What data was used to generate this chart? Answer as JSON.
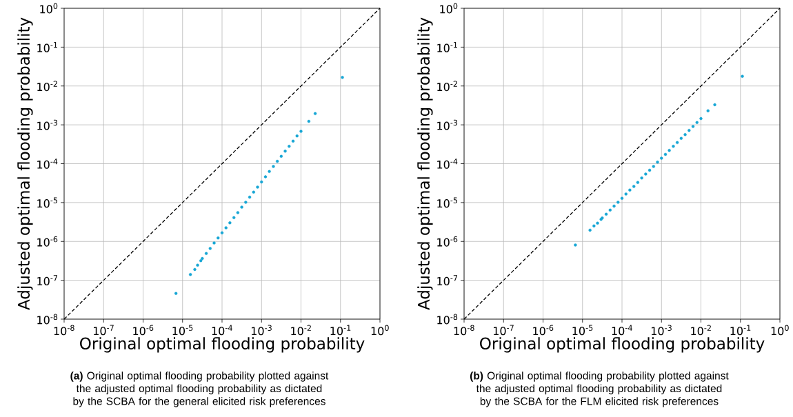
{
  "chart_data": [
    {
      "type": "scatter",
      "xlabel": "Original optimal flooding probability",
      "ylabel": "Adjusted optimal flooding probability",
      "log": "xy",
      "grid": true,
      "marker": "circle",
      "xlim": [
        1e-08,
        1
      ],
      "ylim": [
        1e-08,
        1
      ],
      "xticks": [
        {
          "value": 1e-08,
          "label": "10$^{-8}$"
        },
        {
          "value": 1e-07,
          "label": "10$^{-7}$"
        },
        {
          "value": 1e-06,
          "label": "10$^{-6}$"
        },
        {
          "value": 1e-05,
          "label": "10$^{-5}$"
        },
        {
          "value": 0.0001,
          "label": "10$^{-4}$"
        },
        {
          "value": 0.001,
          "label": "10$^{-3}$"
        },
        {
          "value": 0.01,
          "label": "10$^{-2}$"
        },
        {
          "value": 0.1,
          "label": "10$^{-1}$"
        },
        {
          "value": 1,
          "label": "10$^{0}$"
        }
      ],
      "yticks": [
        {
          "value": 1e-08,
          "label": "10$^{-8}$"
        },
        {
          "value": 1e-07,
          "label": "10$^{-7}$"
        },
        {
          "value": 1e-06,
          "label": "10$^{-6}$"
        },
        {
          "value": 1e-05,
          "label": "10$^{-5}$"
        },
        {
          "value": 0.0001,
          "label": "10$^{-4}$"
        },
        {
          "value": 0.001,
          "label": "10$^{-3}$"
        },
        {
          "value": 0.01,
          "label": "10$^{-2}$"
        },
        {
          "value": 0.1,
          "label": "10$^{-1}$"
        },
        {
          "value": 1,
          "label": "10$^{0}$"
        }
      ],
      "series": [
        {
          "type": "line",
          "line_style": "dashed",
          "marker": "none",
          "color": "#000000",
          "x": [
            1e-08,
            1
          ],
          "values": [
            1e-08,
            1
          ]
        },
        {
          "type": "scatter",
          "color": "#17a6d5",
          "x": [
            6.8e-06,
            1.58e-05,
            2.04e-05,
            2.4e-05,
            2.9e-05,
            3.16e-05,
            3.98e-05,
            5.01e-05,
            6.31e-05,
            7.94e-05,
            0.0001,
            0.000126,
            0.000158,
            0.0002,
            0.000251,
            0.000316,
            0.000398,
            0.000501,
            0.000631,
            0.000794,
            0.001,
            0.00126,
            0.00158,
            0.002,
            0.00251,
            0.00316,
            0.00398,
            0.00501,
            0.00631,
            0.00794,
            0.01,
            0.0158,
            0.0229,
            0.112
          ],
          "values": [
            4.6e-08,
            1.41e-07,
            1.9e-07,
            2.45e-07,
            3.2e-07,
            3.63e-07,
            4.9e-07,
            6.6e-07,
            9.1e-07,
            1.23e-06,
            1.66e-06,
            2.24e-06,
            3e-06,
            4.1e-06,
            5.5e-06,
            7.6e-06,
            1.02e-05,
            1.38e-05,
            1.86e-05,
            2.5e-05,
            3.4e-05,
            4.6e-05,
            6.3e-05,
            8.5e-05,
            0.000115,
            0.000155,
            0.00021,
            0.00028,
            0.00038,
            0.00052,
            0.00068,
            0.00123,
            0.00195,
            0.0166
          ]
        }
      ],
      "annotations": [
        "**(a)** Original optimal flooding probability plotted against the adjusted optimal flooding probability as dictated by the SCBA for the general elicited risk preferences"
      ]
    },
    {
      "type": "scatter",
      "xlabel": "Original optimal flooding probability",
      "ylabel": "Adjusted optimal flooding probability",
      "log": "xy",
      "grid": true,
      "marker": "circle",
      "xlim": [
        1e-08,
        1
      ],
      "ylim": [
        1e-08,
        1
      ],
      "xticks": [
        {
          "value": 1e-08,
          "label": "10$^{-8}$"
        },
        {
          "value": 1e-07,
          "label": "10$^{-7}$"
        },
        {
          "value": 1e-06,
          "label": "10$^{-6}$"
        },
        {
          "value": 1e-05,
          "label": "10$^{-5}$"
        },
        {
          "value": 0.0001,
          "label": "10$^{-4}$"
        },
        {
          "value": 0.001,
          "label": "10$^{-3}$"
        },
        {
          "value": 0.01,
          "label": "10$^{-2}$"
        },
        {
          "value": 0.1,
          "label": "10$^{-1}$"
        },
        {
          "value": 1,
          "label": "10$^{0}$"
        }
      ],
      "yticks": [
        {
          "value": 1e-08,
          "label": "10$^{-8}$"
        },
        {
          "value": 1e-07,
          "label": "10$^{-7}$"
        },
        {
          "value": 1e-06,
          "label": "10$^{-6}$"
        },
        {
          "value": 1e-05,
          "label": "10$^{-5}$"
        },
        {
          "value": 0.0001,
          "label": "10$^{-4}$"
        },
        {
          "value": 0.001,
          "label": "10$^{-3}$"
        },
        {
          "value": 0.01,
          "label": "10$^{-2}$"
        },
        {
          "value": 0.1,
          "label": "10$^{-1}$"
        },
        {
          "value": 1,
          "label": "10$^{0}$"
        }
      ],
      "series": [
        {
          "type": "line",
          "line_style": "dashed",
          "marker": "none",
          "color": "#000000",
          "x": [
            1e-08,
            1
          ],
          "values": [
            1e-08,
            1
          ]
        },
        {
          "type": "scatter",
          "color": "#17a6d5",
          "x": [
            6.6e-06,
            1.55e-05,
            1.95e-05,
            2.4e-05,
            2.95e-05,
            3.16e-05,
            3.98e-05,
            5.01e-05,
            6.31e-05,
            7.94e-05,
            0.0001,
            0.000126,
            0.000158,
            0.0002,
            0.000251,
            0.000316,
            0.000398,
            0.000501,
            0.000631,
            0.000794,
            0.001,
            0.00126,
            0.00158,
            0.002,
            0.00251,
            0.00316,
            0.00398,
            0.00501,
            0.00631,
            0.00794,
            0.01,
            0.0151,
            0.0224,
            0.112
          ],
          "values": [
            8.1e-07,
            1.95e-06,
            2.5e-06,
            2.95e-06,
            3.7e-06,
            4e-06,
            5e-06,
            6.4e-06,
            8.1e-06,
            1.02e-05,
            1.29e-05,
            1.66e-05,
            2.1e-05,
            2.6e-05,
            3.3e-05,
            4.3e-05,
            5.4e-05,
            6.8e-05,
            8.5e-05,
            0.00011,
            0.000138,
            0.000174,
            0.00022,
            0.00028,
            0.00035,
            0.00045,
            0.00056,
            0.00072,
            0.00091,
            0.00115,
            0.00145,
            0.0023,
            0.0033,
            0.0178
          ]
        }
      ],
      "annotations": [
        "**(b)** Original optimal flooding probability plotted against the adjusted optimal flooding probability as dictated by the SCBA for the FLM elicited risk preferences"
      ]
    }
  ]
}
